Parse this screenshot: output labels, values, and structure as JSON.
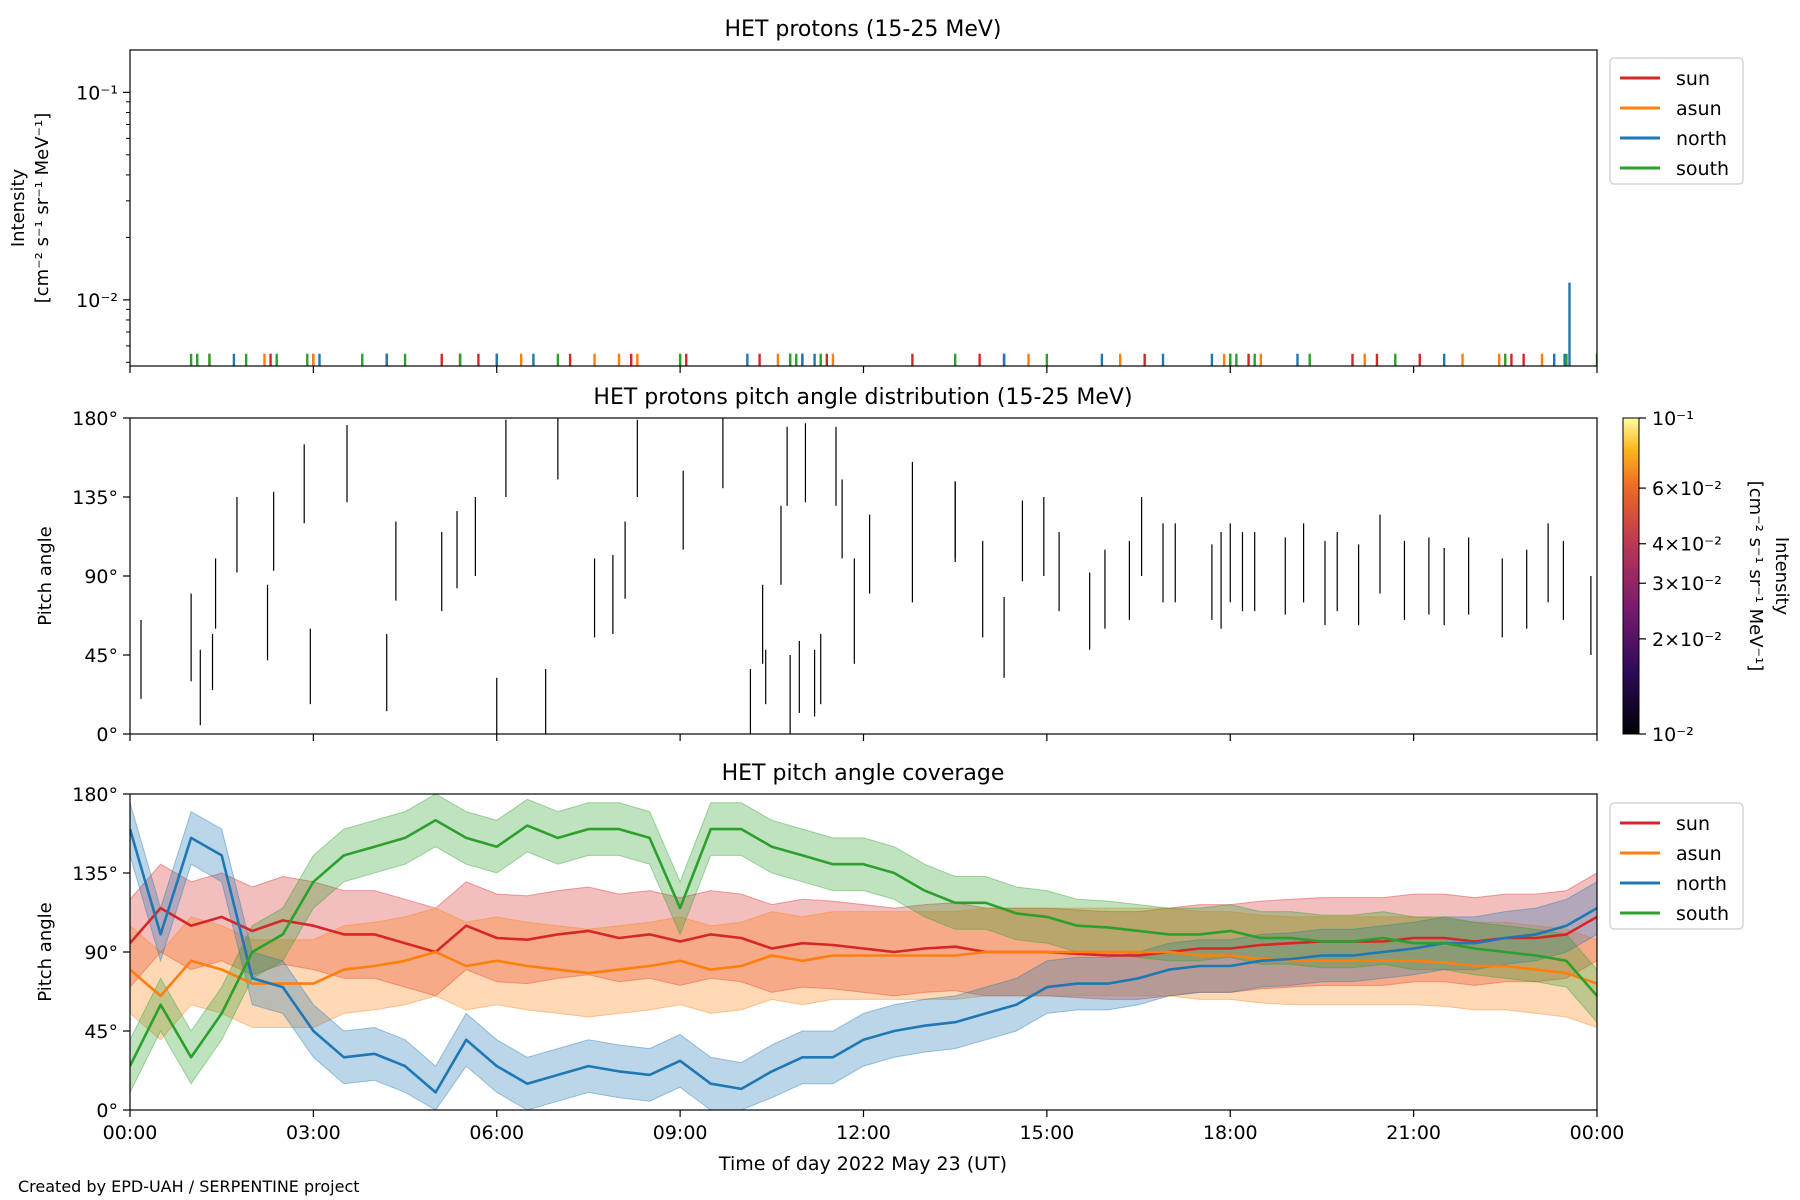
{
  "footer": {
    "credit": "Created by EPD-UAH / SERPENTINE project"
  },
  "chart_data": [
    {
      "type": "bar",
      "title": "HET protons (15-25 MeV)",
      "ylabel_line1": "Intensity",
      "ylabel_line2": "[cm⁻² s⁻¹ sr⁻¹ MeV⁻¹]",
      "yscale": "log",
      "ylim": [
        0.0048,
        0.16
      ],
      "yticks": [
        {
          "value": 0.01,
          "label": "10⁻²"
        },
        {
          "value": 0.1,
          "label": "10⁻¹"
        }
      ],
      "xlim_hours": [
        0,
        24
      ],
      "x_unit": "hours since 2022-05-23 00:00 UT",
      "legend": {
        "placement": "upper right, outside",
        "entries": [
          "sun",
          "asun",
          "north",
          "south"
        ]
      },
      "series": [
        {
          "name": "sun",
          "color": "#d62728",
          "spike_hours": [
            2.3,
            3.0,
            4.2,
            5.1,
            5.4,
            5.7,
            6.0,
            7.2,
            8.2,
            9.1,
            10.3,
            11.0,
            11.4,
            12.8,
            13.9,
            14.3,
            16.6,
            18.0,
            18.3,
            20.0,
            20.4,
            21.1,
            22.6,
            22.8
          ],
          "value": 0.0055
        },
        {
          "name": "asun",
          "color": "#ff7f0e",
          "spike_hours": [
            1.3,
            2.2,
            3.0,
            6.4,
            7.6,
            8.0,
            8.3,
            9.0,
            10.6,
            11.5,
            14.7,
            16.2,
            17.9,
            18.5,
            20.2,
            21.8,
            22.4,
            22.5,
            23.1
          ],
          "value": 0.0055
        },
        {
          "name": "north",
          "color": "#1f77b4",
          "spike_hours": [
            1.7,
            3.1,
            4.2,
            6.0,
            6.6,
            10.1,
            10.8,
            11.0,
            11.2,
            14.3,
            15.9,
            16.9,
            17.7,
            19.1,
            21.5,
            23.3,
            23.47
          ],
          "value": 0.0055
        },
        {
          "name": "south",
          "color": "#2ca02c",
          "spike_hours": [
            1.0,
            1.1,
            1.3,
            1.9,
            2.4,
            2.9,
            3.8,
            4.5,
            5.4,
            7.0,
            9.0,
            10.8,
            10.9,
            11.3,
            13.5,
            15.0,
            18.0,
            18.1,
            18.4,
            19.3,
            20.7,
            22.5,
            23.5,
            24.0
          ],
          "value": 0.0055
        },
        {
          "name": "north",
          "color": "#1f77b4",
          "spike_hours": [
            23.55
          ],
          "value": 0.0121
        }
      ]
    },
    {
      "type": "heatmap",
      "title": "HET protons pitch angle distribution (15-25 MeV)",
      "ylabel": "Pitch angle",
      "ylim": [
        0,
        180
      ],
      "yticks": [
        "0°",
        "45°",
        "90°",
        "135°",
        "180°"
      ],
      "xlim_hours": [
        0,
        24
      ],
      "colorbar": {
        "scale": "log",
        "range": [
          0.01,
          0.1
        ],
        "label_line1": "Intensity",
        "label_line2": "[cm⁻² s⁻¹ sr⁻¹ MeV⁻¹]",
        "ticks": [
          {
            "value": 0.01,
            "label": "10⁻²"
          },
          {
            "value": 0.02,
            "label": "2×10⁻²"
          },
          {
            "value": 0.03,
            "label": "3×10⁻²"
          },
          {
            "value": 0.04,
            "label": "4×10⁻²"
          },
          {
            "value": 0.06,
            "label": "6×10⁻²"
          },
          {
            "value": 0.1,
            "label": "10⁻¹"
          }
        ],
        "colormap": "inferno"
      },
      "segments": [
        [
          0.18,
          20,
          65
        ],
        [
          1.0,
          30,
          80
        ],
        [
          1.15,
          5,
          48
        ],
        [
          1.35,
          25,
          57
        ],
        [
          1.4,
          60,
          100
        ],
        [
          1.75,
          92,
          135
        ],
        [
          2.25,
          42,
          85
        ],
        [
          2.35,
          93,
          138
        ],
        [
          2.85,
          120,
          165
        ],
        [
          2.95,
          17,
          60
        ],
        [
          3.55,
          132,
          176
        ],
        [
          4.2,
          13,
          57
        ],
        [
          4.35,
          76,
          121
        ],
        [
          5.1,
          70,
          115
        ],
        [
          5.35,
          83,
          127
        ],
        [
          5.65,
          90,
          135
        ],
        [
          6.0,
          0,
          32
        ],
        [
          6.15,
          135,
          179
        ],
        [
          6.8,
          0,
          37
        ],
        [
          7.0,
          145,
          180
        ],
        [
          7.6,
          55,
          100
        ],
        [
          7.9,
          57,
          102
        ],
        [
          8.1,
          77,
          121
        ],
        [
          8.3,
          135,
          179
        ],
        [
          9.05,
          105,
          150
        ],
        [
          9.7,
          140,
          180
        ],
        [
          10.15,
          0,
          37
        ],
        [
          10.35,
          40,
          85
        ],
        [
          10.4,
          17,
          48
        ],
        [
          10.65,
          85,
          130
        ],
        [
          10.75,
          130,
          175
        ],
        [
          10.8,
          0,
          45
        ],
        [
          10.95,
          12,
          53
        ],
        [
          11.05,
          132,
          177
        ],
        [
          11.2,
          10,
          48
        ],
        [
          11.3,
          17,
          57
        ],
        [
          11.55,
          130,
          175
        ],
        [
          11.65,
          100,
          145
        ],
        [
          11.85,
          40,
          100
        ],
        [
          12.1,
          80,
          125
        ],
        [
          12.8,
          75,
          155
        ],
        [
          13.5,
          98,
          143
        ],
        [
          13.5,
          100,
          144
        ],
        [
          13.95,
          55,
          110
        ],
        [
          14.3,
          32,
          78
        ],
        [
          14.6,
          87,
          133
        ],
        [
          14.95,
          90,
          135
        ],
        [
          15.2,
          70,
          115
        ],
        [
          15.7,
          48,
          92
        ],
        [
          15.95,
          60,
          105
        ],
        [
          16.35,
          65,
          110
        ],
        [
          16.55,
          90,
          135
        ],
        [
          16.9,
          75,
          120
        ],
        [
          17.1,
          75,
          120
        ],
        [
          17.7,
          65,
          108
        ],
        [
          17.85,
          60,
          115
        ],
        [
          18.0,
          75,
          120
        ],
        [
          18.2,
          70,
          115
        ],
        [
          18.4,
          70,
          115
        ],
        [
          18.9,
          68,
          112
        ],
        [
          19.2,
          75,
          120
        ],
        [
          19.55,
          62,
          110
        ],
        [
          19.75,
          70,
          115
        ],
        [
          20.1,
          62,
          108
        ],
        [
          20.45,
          80,
          125
        ],
        [
          20.85,
          65,
          110
        ],
        [
          21.25,
          68,
          112
        ],
        [
          21.5,
          62,
          106
        ],
        [
          21.9,
          68,
          112
        ],
        [
          22.45,
          55,
          100
        ],
        [
          22.85,
          60,
          105
        ],
        [
          23.2,
          75,
          120
        ],
        [
          23.45,
          65,
          110
        ],
        [
          23.9,
          45,
          90
        ]
      ]
    },
    {
      "type": "area",
      "title": "HET pitch angle coverage",
      "ylabel": "Pitch angle",
      "xlabel": "Time of day 2022 May 23 (UT)",
      "ylim": [
        0,
        180
      ],
      "yticks": [
        "0°",
        "45°",
        "90°",
        "135°",
        "180°"
      ],
      "xlim_hours": [
        0,
        24
      ],
      "xticks": [
        "00:00",
        "03:00",
        "06:00",
        "09:00",
        "12:00",
        "15:00",
        "18:00",
        "21:00",
        "00:00"
      ],
      "legend": {
        "placement": "upper right, outside",
        "entries": [
          "sun",
          "asun",
          "north",
          "south"
        ]
      },
      "x": [
        0,
        0.5,
        1,
        1.5,
        2,
        2.5,
        3,
        3.5,
        4,
        4.5,
        5,
        5.5,
        6,
        6.5,
        7,
        7.5,
        8,
        8.5,
        9,
        9.5,
        10,
        10.5,
        11,
        11.5,
        12,
        12.5,
        13,
        13.5,
        14,
        14.5,
        15,
        15.5,
        16,
        16.5,
        17,
        17.5,
        18,
        18.5,
        19,
        19.5,
        20,
        20.5,
        21,
        21.5,
        22,
        22.5,
        23,
        23.5,
        24
      ],
      "series": [
        {
          "name": "sun",
          "color": "#d62728",
          "band_halfwidth": 25,
          "values": [
            95,
            115,
            105,
            110,
            102,
            108,
            105,
            100,
            100,
            95,
            90,
            105,
            98,
            97,
            100,
            102,
            98,
            100,
            96,
            100,
            98,
            92,
            95,
            94,
            92,
            90,
            92,
            93,
            90,
            90,
            90,
            89,
            88,
            88,
            90,
            92,
            92,
            94,
            95,
            96,
            96,
            96,
            98,
            98,
            96,
            98,
            98,
            100,
            110
          ]
        },
        {
          "name": "asun",
          "color": "#ff7f0e",
          "band_halfwidth": 25,
          "values": [
            80,
            65,
            85,
            80,
            72,
            72,
            72,
            80,
            82,
            85,
            90,
            82,
            85,
            82,
            80,
            78,
            80,
            82,
            85,
            80,
            82,
            88,
            85,
            88,
            88,
            88,
            88,
            88,
            90,
            90,
            90,
            90,
            90,
            90,
            90,
            88,
            88,
            86,
            85,
            85,
            85,
            85,
            85,
            84,
            82,
            82,
            80,
            78,
            72
          ]
        },
        {
          "name": "north",
          "color": "#1f77b4",
          "band_halfwidth": 15,
          "values": [
            160,
            100,
            155,
            145,
            75,
            70,
            45,
            30,
            32,
            25,
            10,
            40,
            25,
            15,
            20,
            25,
            22,
            20,
            28,
            15,
            12,
            22,
            30,
            30,
            40,
            45,
            48,
            50,
            55,
            60,
            70,
            72,
            72,
            75,
            80,
            82,
            82,
            85,
            86,
            88,
            88,
            90,
            92,
            95,
            95,
            98,
            100,
            105,
            115
          ]
        },
        {
          "name": "south",
          "color": "#2ca02c",
          "band_halfwidth": 15,
          "values": [
            25,
            60,
            30,
            55,
            90,
            100,
            130,
            145,
            150,
            155,
            165,
            155,
            150,
            162,
            155,
            160,
            160,
            155,
            115,
            160,
            160,
            150,
            145,
            140,
            140,
            135,
            125,
            118,
            118,
            112,
            110,
            105,
            104,
            102,
            100,
            100,
            102,
            98,
            98,
            96,
            96,
            98,
            95,
            95,
            92,
            90,
            88,
            85,
            65
          ]
        }
      ]
    }
  ]
}
